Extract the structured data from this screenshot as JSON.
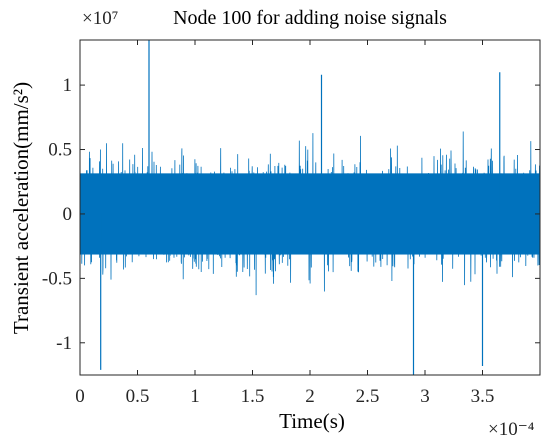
{
  "chart_data": {
    "type": "line",
    "title": "Node 100 for adding noise signals",
    "xlabel": "Time(s)",
    "ylabel": "Transient acceleration(mm/s²)",
    "x_exponent_label": "×10⁻⁴",
    "y_exponent_label": "×10⁷",
    "xlim": [
      0,
      4
    ],
    "ylim": [
      -1.25,
      1.35
    ],
    "x_ticks": [
      0,
      0.5,
      1,
      1.5,
      2,
      2.5,
      3,
      3.5
    ],
    "x_tick_labels": [
      "0",
      "0.5",
      "1",
      "1.5",
      "2",
      "2.5",
      "3",
      "3.5"
    ],
    "y_ticks": [
      1,
      0.5,
      0,
      -0.5,
      -1
    ],
    "y_tick_labels": [
      "1",
      "0.5",
      "0",
      "-0.5",
      "-1"
    ],
    "grid": false,
    "series": [
      {
        "color": "#0072BD",
        "peaks": [
          {
            "x": 0.6,
            "y": 1.35
          },
          {
            "x": 0.18,
            "y": -1.21
          },
          {
            "x": 2.9,
            "y": -1.25
          },
          {
            "x": 3.5,
            "y": -1.18
          },
          {
            "x": 2.1,
            "y": 1.08
          },
          {
            "x": 3.65,
            "y": 1.1
          }
        ],
        "envelope": {
          "core_abs": 0.45,
          "typical_peak_abs": 0.9
        }
      }
    ]
  }
}
